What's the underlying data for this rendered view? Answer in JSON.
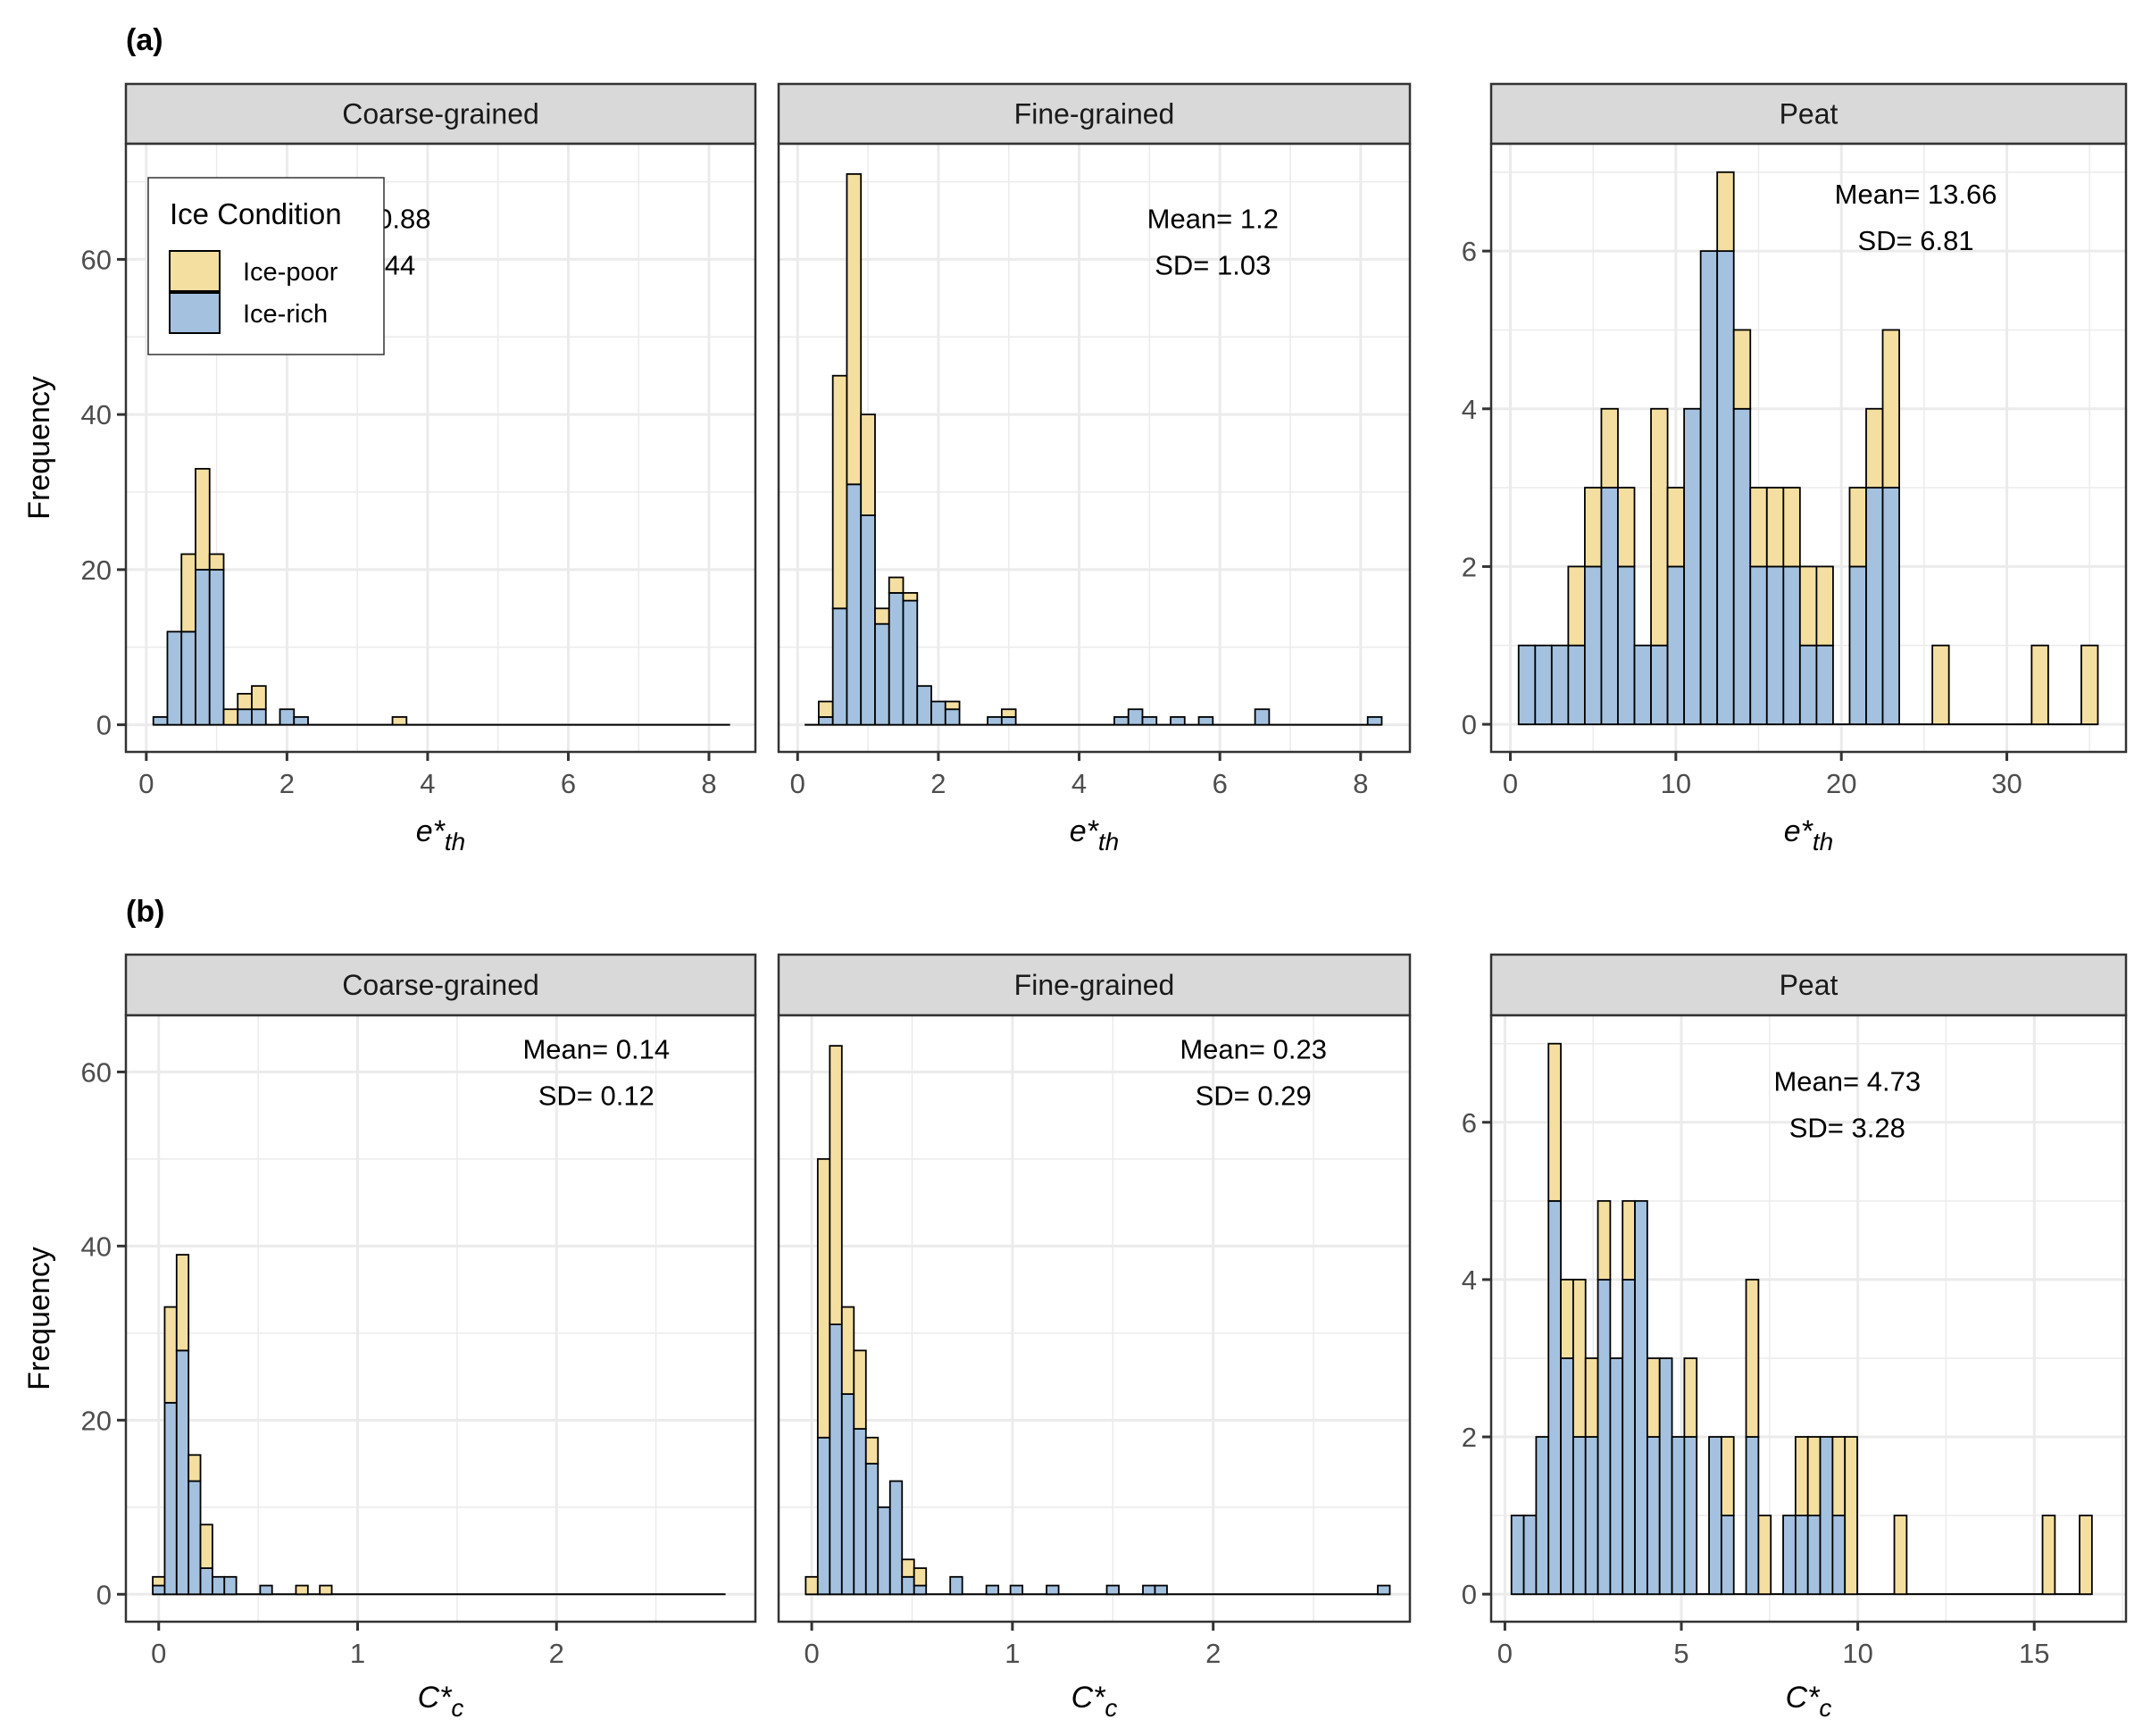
{
  "figure": {
    "legend": {
      "title": "Ice Condition",
      "entries": [
        {
          "name": "Ice-poor",
          "color": "#F5DFA0"
        },
        {
          "name": "Ice-rich",
          "color": "#A4C2E0"
        }
      ]
    },
    "strip_color": "#D9D9D9",
    "ylabel": "Frequency"
  },
  "chart_data": [
    {
      "type": "bar",
      "stacked": true,
      "row_label": "(a)",
      "facet": "Coarse-grained",
      "xlabel_base": "e*",
      "xlabel_sub": "th",
      "ylabel": "Frequency",
      "xlim": [
        -0.29,
        8.66
      ],
      "ylim": [
        -3.5,
        74.9
      ],
      "xticks": [
        0,
        2,
        4,
        6,
        8
      ],
      "yticks": [
        0,
        20,
        40,
        60
      ],
      "bin_width": 0.2,
      "baseline": [
        0.1,
        8.3
      ],
      "annotation": {
        "mean": "Mean= 0.88",
        "sd": "SD= 0.44"
      },
      "annotation_pos": [
        3.0,
        64
      ],
      "x": [
        0.2,
        0.4,
        0.6,
        0.8,
        1.0,
        1.2,
        1.4,
        1.6,
        2.0,
        2.2,
        3.6
      ],
      "series": [
        {
          "name": "Ice-rich",
          "values": [
            1,
            12,
            12,
            20,
            20,
            0,
            2,
            2,
            2,
            1,
            0
          ]
        },
        {
          "name": "Ice-poor",
          "values": [
            0,
            0,
            10,
            13,
            2,
            2,
            2,
            3,
            0,
            0,
            1
          ]
        }
      ],
      "show_legend": true,
      "show_yticks": true
    },
    {
      "type": "bar",
      "stacked": true,
      "row_label": "",
      "facet": "Fine-grained",
      "xlabel_base": "e*",
      "xlabel_sub": "th",
      "ylabel": "",
      "xlim": [
        -0.27,
        8.7
      ],
      "ylim": [
        -3.5,
        74.9
      ],
      "xticks": [
        0,
        2,
        4,
        6,
        8
      ],
      "yticks": [
        0,
        20,
        40,
        60
      ],
      "bin_width": 0.2,
      "baseline": [
        0.1,
        8.3
      ],
      "annotation": {
        "mean": "Mean= 1.2",
        "sd": "SD= 1.03"
      },
      "annotation_pos": [
        5.9,
        64
      ],
      "x": [
        0.4,
        0.6,
        0.8,
        1.0,
        1.2,
        1.4,
        1.6,
        1.8,
        2.0,
        2.2,
        2.8,
        3.0,
        4.6,
        4.8,
        5.0,
        5.4,
        5.8,
        6.6,
        8.2
      ],
      "series": [
        {
          "name": "Ice-rich",
          "values": [
            1,
            15,
            31,
            27,
            13,
            17,
            16,
            5,
            3,
            2,
            1,
            1,
            1,
            2,
            1,
            1,
            1,
            2,
            1
          ]
        },
        {
          "name": "Ice-poor",
          "values": [
            2,
            30,
            40,
            13,
            2,
            2,
            1,
            0,
            0,
            1,
            0,
            1,
            0,
            0,
            0,
            0,
            0,
            0,
            0
          ]
        }
      ],
      "show_legend": false,
      "show_yticks": false
    },
    {
      "type": "bar",
      "stacked": true,
      "row_label": "",
      "facet": "Peat",
      "xlabel_base": "e*",
      "xlabel_sub": "th",
      "ylabel": "",
      "xlim": [
        -1.16,
        37.2
      ],
      "ylim": [
        -0.35,
        7.36
      ],
      "xticks": [
        0,
        10,
        20,
        30
      ],
      "yticks": [
        0,
        2,
        4,
        6
      ],
      "bin_width": 1.0,
      "baseline": [
        0.5,
        35.5
      ],
      "annotation": {
        "mean": "Mean= 13.66",
        "sd": "SD= 6.81"
      },
      "annotation_pos": [
        24.5,
        6.6
      ],
      "x": [
        1,
        2,
        3,
        4,
        5,
        6,
        7,
        8,
        9,
        10,
        11,
        12,
        13,
        14,
        15,
        16,
        17,
        18,
        19,
        21,
        22,
        23,
        26,
        32,
        35
      ],
      "series": [
        {
          "name": "Ice-rich",
          "values": [
            1,
            1,
            1,
            1,
            2,
            3,
            2,
            1,
            1,
            2,
            4,
            6,
            6,
            4,
            2,
            2,
            2,
            1,
            1,
            2,
            3,
            3,
            0,
            0,
            0
          ]
        },
        {
          "name": "Ice-poor",
          "values": [
            0,
            0,
            0,
            1,
            1,
            1,
            1,
            0,
            3,
            1,
            0,
            0,
            1,
            1,
            1,
            1,
            1,
            1,
            1,
            1,
            1,
            2,
            1,
            1,
            1
          ]
        }
      ],
      "show_legend": false,
      "show_yticks": true
    },
    {
      "type": "bar",
      "stacked": true,
      "row_label": "(b)",
      "facet": "Coarse-grained",
      "xlabel_base": "C*",
      "xlabel_sub": "c",
      "ylabel": "Frequency",
      "xlim": [
        -0.165,
        3.0
      ],
      "ylim": [
        -3.15,
        66.5
      ],
      "xticks": [
        0,
        1,
        2
      ],
      "yticks": [
        0,
        20,
        40,
        60
      ],
      "bin_width": 0.06,
      "baseline": [
        -0.03,
        2.85
      ],
      "annotation": {
        "mean": "Mean= 0.14",
        "sd": "SD= 0.12"
      },
      "annotation_pos": [
        2.2,
        61.5
      ],
      "x": [
        0,
        0.06,
        0.12,
        0.18,
        0.24,
        0.3,
        0.36,
        0.54,
        0.72,
        0.84
      ],
      "series": [
        {
          "name": "Ice-rich",
          "values": [
            1,
            22,
            28,
            13,
            3,
            2,
            2,
            1,
            0,
            0
          ]
        },
        {
          "name": "Ice-poor",
          "values": [
            1,
            11,
            11,
            3,
            5,
            0,
            0,
            0,
            1,
            1
          ]
        }
      ],
      "show_legend": false,
      "show_yticks": true
    },
    {
      "type": "bar",
      "stacked": true,
      "row_label": "",
      "facet": "Fine-grained",
      "xlabel_base": "C*",
      "xlabel_sub": "c",
      "ylabel": "",
      "xlim": [
        -0.165,
        2.98
      ],
      "ylim": [
        -3.15,
        66.5
      ],
      "xticks": [
        0,
        1,
        2
      ],
      "yticks": [
        0,
        20,
        40,
        60
      ],
      "bin_width": 0.06,
      "baseline": [
        -0.03,
        2.88
      ],
      "annotation": {
        "mean": "Mean= 0.23",
        "sd": "SD= 0.29"
      },
      "annotation_pos": [
        2.2,
        61.5
      ],
      "x": [
        0,
        0.06,
        0.12,
        0.18,
        0.24,
        0.3,
        0.36,
        0.42,
        0.48,
        0.54,
        0.72,
        0.9,
        1.02,
        1.2,
        1.5,
        1.68,
        1.74,
        2.85
      ],
      "series": [
        {
          "name": "Ice-rich",
          "values": [
            0,
            18,
            31,
            23,
            19,
            15,
            10,
            13,
            2,
            1,
            2,
            1,
            1,
            1,
            1,
            1,
            1,
            1
          ]
        },
        {
          "name": "Ice-poor",
          "values": [
            2,
            32,
            32,
            10,
            9,
            3,
            0,
            0,
            2,
            2,
            0,
            0,
            0,
            0,
            0,
            0,
            0,
            0
          ]
        }
      ],
      "show_legend": false,
      "show_yticks": false
    },
    {
      "type": "bar",
      "stacked": true,
      "row_label": "",
      "facet": "Peat",
      "xlabel_base": "C*",
      "xlabel_sub": "c",
      "ylabel": "",
      "xlim": [
        -0.39,
        17.6
      ],
      "ylim": [
        -0.35,
        7.36
      ],
      "xticks": [
        0,
        5,
        10,
        15
      ],
      "yticks": [
        0,
        2,
        4,
        6
      ],
      "bin_width": 0.35,
      "baseline": [
        0.19,
        16.63
      ],
      "annotation": {
        "mean": "Mean= 4.73",
        "sd": "SD= 3.28"
      },
      "annotation_pos": [
        9.7,
        6.4
      ],
      "x": [
        0.36,
        0.71,
        1.06,
        1.41,
        1.76,
        2.11,
        2.46,
        2.81,
        3.16,
        3.51,
        3.86,
        4.21,
        4.56,
        4.91,
        5.26,
        5.96,
        6.31,
        7.01,
        7.36,
        8.06,
        8.41,
        8.76,
        9.11,
        9.46,
        9.81,
        11.21,
        15.41,
        16.46
      ],
      "series": [
        {
          "name": "Ice-rich",
          "values": [
            1,
            1,
            2,
            5,
            3,
            2,
            2,
            4,
            3,
            4,
            5,
            2,
            3,
            2,
            2,
            2,
            1,
            2,
            0,
            1,
            1,
            1,
            2,
            1,
            0,
            0,
            0,
            0
          ]
        },
        {
          "name": "Ice-poor",
          "values": [
            0,
            0,
            0,
            2,
            1,
            2,
            1,
            1,
            0,
            1,
            0,
            1,
            0,
            0,
            1,
            0,
            1,
            2,
            1,
            0,
            1,
            1,
            0,
            1,
            2,
            1,
            1,
            1
          ]
        }
      ],
      "show_legend": false,
      "show_yticks": true
    }
  ]
}
